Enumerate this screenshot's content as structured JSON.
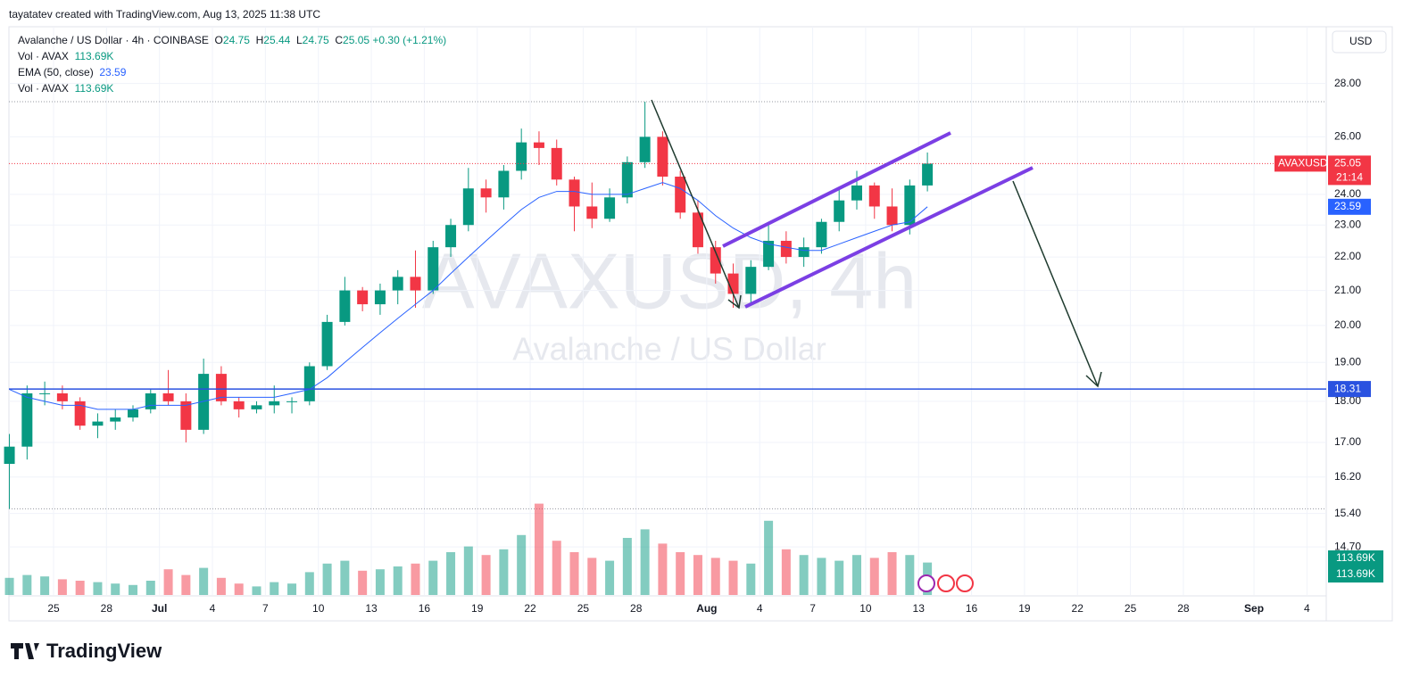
{
  "header": {
    "attribution": "tayatatev created with TradingView.com, Aug 13, 2025 11:38 UTC",
    "currency": "USD"
  },
  "chart_data": {
    "type": "candlestick",
    "title": "Avalanche / US Dollar · 4h · COINBASE",
    "last_bar": {
      "O": 24.75,
      "H": 25.44,
      "L": 24.75,
      "C": 25.05,
      "change": "+0.30 (+1.21%)"
    },
    "indicators": [
      {
        "name": "Vol · AVAX",
        "value": "113.69K"
      },
      {
        "name": "EMA (50, close)",
        "value": "23.59"
      },
      {
        "name": "Vol · AVAX",
        "value": "113.69K"
      }
    ],
    "watermark": "AVAXUSD, 4h",
    "watermark_subtitle": "Avalanche / US Dollar",
    "categories": [
      null,
      null,
      null,
      "25",
      null,
      null,
      "28",
      null,
      null,
      "Jul",
      null,
      null,
      "4",
      null,
      null,
      "7",
      null,
      null,
      "10",
      null,
      null,
      "13",
      null,
      null,
      "16",
      null,
      null,
      "19",
      null,
      null,
      "22",
      null,
      null,
      "25",
      null,
      null,
      "28",
      null,
      null,
      null,
      "Aug",
      null,
      null,
      "4",
      null,
      null,
      "7",
      null,
      null,
      "10",
      null,
      null,
      "13",
      null,
      null,
      "16",
      null,
      null,
      "19",
      null,
      null,
      "22",
      null,
      null,
      "25",
      null,
      null,
      "28",
      null,
      null,
      null,
      "Sep",
      null,
      null,
      "4",
      null
    ],
    "open": [
      16.5,
      16.9,
      18.2,
      18.2,
      18.0,
      17.4,
      17.5,
      17.6,
      17.8,
      18.2,
      18.0,
      17.3,
      18.7,
      18.0,
      17.8,
      17.9,
      18.0,
      18.0,
      18.9,
      20.1,
      21.0,
      20.6,
      21.0,
      21.4,
      21.0,
      22.3,
      23.0,
      24.2,
      23.9,
      24.8,
      25.8,
      25.6,
      24.5,
      23.6,
      23.2,
      23.9,
      25.1,
      26.0,
      24.6,
      23.4,
      22.3,
      21.5,
      20.9,
      21.7,
      22.5,
      22.0,
      22.3,
      23.1,
      23.8,
      24.3,
      23.6,
      23.0,
      24.3,
      null,
      null,
      null,
      null,
      null,
      null,
      null,
      null,
      null,
      null,
      null,
      null,
      null,
      null,
      null,
      null,
      null,
      null,
      null,
      null,
      null,
      null,
      null
    ],
    "high": [
      17.2,
      18.4,
      18.5,
      18.4,
      18.1,
      17.7,
      17.8,
      17.9,
      18.3,
      18.8,
      18.2,
      19.1,
      18.9,
      18.1,
      18.0,
      18.4,
      18.1,
      19.0,
      20.3,
      21.4,
      21.1,
      21.2,
      21.6,
      22.2,
      22.5,
      23.2,
      24.9,
      24.5,
      25.0,
      26.3,
      26.2,
      25.9,
      24.6,
      24.4,
      24.2,
      25.3,
      27.3,
      26.2,
      24.8,
      23.8,
      22.5,
      21.8,
      21.9,
      23.1,
      22.8,
      22.6,
      23.2,
      24.2,
      24.8,
      24.4,
      24.2,
      24.5,
      25.44,
      null,
      null,
      null,
      null,
      null,
      null,
      null,
      null,
      null,
      null,
      null,
      null,
      null,
      null,
      null,
      null,
      null,
      null,
      null,
      null,
      null,
      null,
      null
    ],
    "low": [
      15.5,
      16.6,
      17.9,
      17.8,
      17.3,
      17.1,
      17.3,
      17.5,
      17.7,
      17.9,
      17.0,
      17.2,
      17.9,
      17.6,
      17.7,
      17.7,
      17.7,
      17.9,
      18.8,
      20.0,
      20.4,
      20.3,
      20.6,
      20.5,
      20.9,
      22.0,
      22.8,
      23.4,
      23.5,
      24.5,
      25.0,
      24.3,
      22.8,
      22.9,
      23.1,
      23.7,
      24.9,
      24.3,
      23.2,
      22.1,
      21.2,
      20.5,
      20.6,
      21.6,
      21.8,
      21.7,
      22.1,
      22.8,
      23.5,
      23.2,
      22.8,
      22.7,
      24.1,
      null,
      null,
      null,
      null,
      null,
      null,
      null,
      null,
      null,
      null,
      null,
      null,
      null,
      null,
      null,
      null,
      null,
      null,
      null,
      null,
      null,
      null,
      null
    ],
    "close": [
      16.9,
      18.2,
      18.2,
      18.0,
      17.4,
      17.5,
      17.6,
      17.8,
      18.2,
      18.0,
      17.3,
      18.7,
      18.0,
      17.8,
      17.9,
      18.0,
      18.0,
      18.9,
      20.1,
      21.0,
      20.6,
      21.0,
      21.4,
      21.0,
      22.3,
      23.0,
      24.2,
      23.9,
      24.8,
      25.8,
      25.6,
      24.5,
      23.6,
      23.2,
      23.9,
      25.1,
      26.0,
      24.6,
      23.4,
      22.3,
      21.5,
      20.9,
      21.7,
      22.5,
      22.0,
      22.3,
      23.1,
      23.8,
      24.3,
      23.6,
      23.0,
      24.3,
      25.05,
      null,
      null,
      null,
      null,
      null,
      null,
      null,
      null,
      null,
      null,
      null,
      null,
      null,
      null,
      null,
      null,
      null,
      null,
      null,
      null,
      null,
      null,
      null
    ],
    "ema": [
      18.3,
      18.1,
      18.0,
      17.9,
      17.9,
      17.8,
      17.8,
      17.8,
      17.9,
      17.9,
      17.9,
      18.0,
      18.1,
      18.1,
      18.1,
      18.1,
      18.2,
      18.3,
      18.6,
      19.0,
      19.4,
      19.8,
      20.2,
      20.6,
      21.0,
      21.5,
      22.0,
      22.5,
      23.0,
      23.5,
      23.9,
      24.1,
      24.1,
      24.0,
      24.0,
      24.0,
      24.2,
      24.4,
      24.2,
      23.8,
      23.3,
      22.9,
      22.6,
      22.4,
      22.3,
      22.2,
      22.2,
      22.4,
      22.6,
      22.8,
      23.0,
      23.1,
      23.59,
      null,
      null,
      null,
      null,
      null,
      null,
      null,
      null,
      null,
      null,
      null,
      null,
      null,
      null,
      null,
      null,
      null,
      null,
      null,
      null,
      null,
      null,
      null
    ],
    "volume": [
      60,
      70,
      65,
      55,
      50,
      45,
      40,
      35,
      50,
      90,
      70,
      95,
      60,
      40,
      30,
      45,
      40,
      80,
      110,
      120,
      85,
      90,
      100,
      110,
      120,
      150,
      170,
      140,
      160,
      210,
      320,
      190,
      150,
      130,
      120,
      200,
      230,
      180,
      150,
      140,
      130,
      120,
      110,
      260,
      160,
      140,
      130,
      120,
      140,
      130,
      150,
      140,
      113.69,
      null,
      null,
      null,
      null,
      null,
      null,
      null,
      null,
      null,
      null,
      null,
      null,
      null,
      null,
      null,
      null,
      null,
      null,
      null,
      null,
      null,
      null,
      null
    ],
    "volume_label": "113.69K",
    "volume_ylim": [
      0,
      500
    ],
    "log_scale": true,
    "ylim": [
      13.75,
      30.3
    ],
    "yticks": [
      {
        "value": 14.7,
        "label": "14.70"
      },
      {
        "value": 15.4,
        "label": "15.40"
      },
      {
        "value": 16.2,
        "label": "16.20"
      },
      {
        "value": 17,
        "label": "17.00"
      },
      {
        "value": 18,
        "label": "18.00"
      },
      {
        "value": 19,
        "label": "19.00"
      },
      {
        "value": 20,
        "label": "20.00"
      },
      {
        "value": 21,
        "label": "21.00"
      },
      {
        "value": 22,
        "label": "22.00"
      },
      {
        "value": 23,
        "label": "23.00"
      },
      {
        "value": 24,
        "label": "24.00"
      },
      {
        "value": 26,
        "label": "26.00"
      },
      {
        "value": 28,
        "label": "28.00"
      }
    ],
    "hline": 18.31,
    "symbol": "AVAXUSD",
    "countdown": "21:14",
    "grid": true,
    "up_color": "#089981",
    "down_color": "#f23645",
    "ema_color": "#2962ff",
    "hline_color": "#2a52e0"
  },
  "footer": {
    "brand": "TradingView"
  }
}
